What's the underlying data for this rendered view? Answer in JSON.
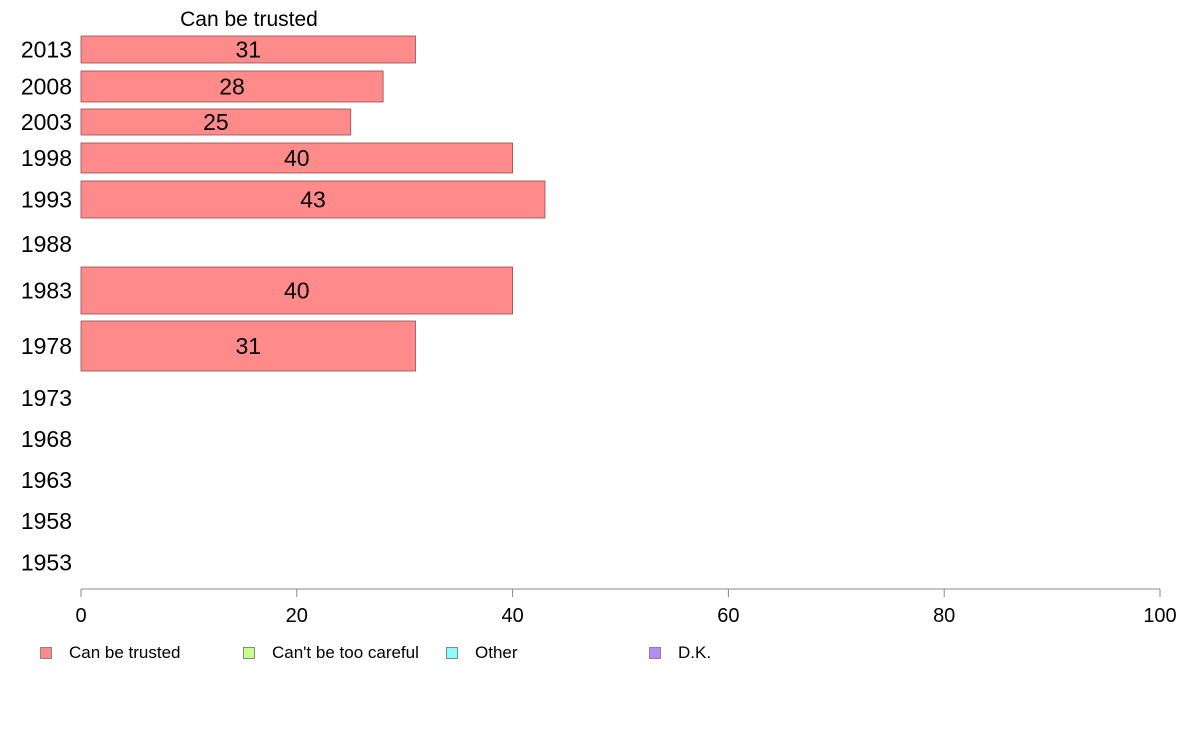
{
  "chart_data": {
    "type": "bar",
    "orientation": "horizontal",
    "title": "Can be trusted",
    "categories": [
      "2013",
      "2008",
      "2003",
      "1998",
      "1993",
      "1988",
      "1983",
      "1978",
      "1973",
      "1968",
      "1963",
      "1958",
      "1953"
    ],
    "series": [
      {
        "name": "Can be trusted",
        "color": "#FF8A8A",
        "values": [
          31,
          28,
          25,
          40,
          43,
          null,
          40,
          31,
          null,
          null,
          null,
          null,
          null
        ],
        "labels": [
          "31",
          "28",
          "25",
          "40",
          "43",
          "",
          "40",
          "31",
          "",
          "",
          "",
          "",
          ""
        ]
      }
    ],
    "xlim": [
      0,
      100
    ],
    "xticks": [
      "0",
      "20",
      "40",
      "60",
      "80",
      "100"
    ],
    "grid": false,
    "legend_position": "bottom",
    "legend": [
      {
        "label": "Can be trusted",
        "color": "#FF8A8A"
      },
      {
        "label": "Can't be too careful",
        "color": "#C8FF8A"
      },
      {
        "label": "Other",
        "color": "#8AFFFF"
      },
      {
        "label": "D.K.",
        "color": "#B98AFF"
      }
    ]
  }
}
